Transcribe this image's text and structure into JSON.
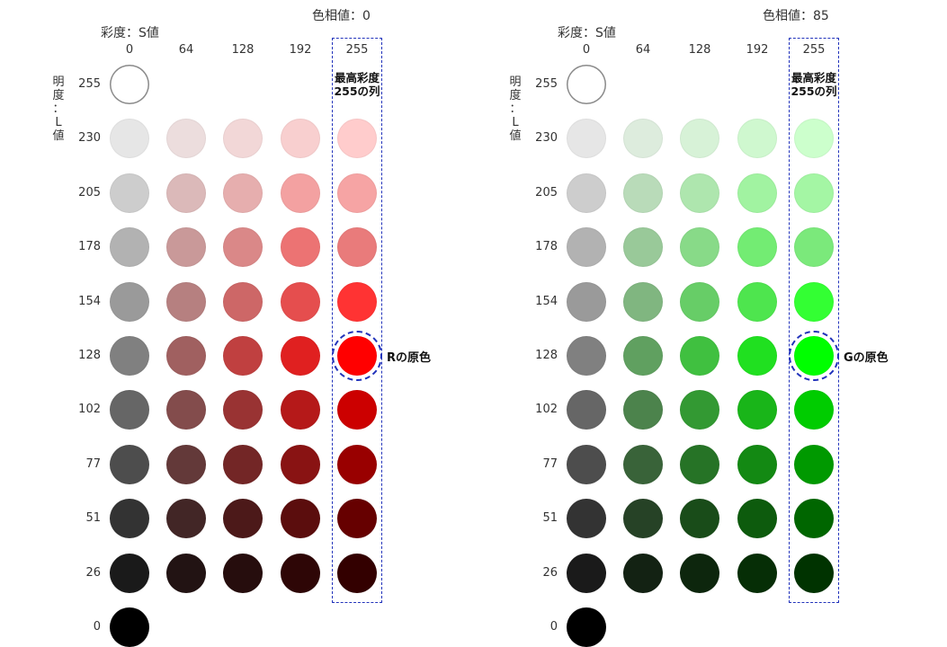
{
  "panels": [
    {
      "hue_label": "色相値：0",
      "saturation_label": "彩度：S値",
      "lightness_label": [
        "明",
        "度",
        "：",
        "L",
        "値"
      ],
      "columns": [
        "0",
        "64",
        "128",
        "192",
        "255"
      ],
      "rows": [
        "255",
        "230",
        "205",
        "178",
        "154",
        "128",
        "102",
        "77",
        "51",
        "26",
        "0"
      ],
      "max_column_label": [
        "最高彩度",
        "255の列"
      ],
      "primary_label": "Rの原色",
      "primary_row": "128",
      "colors": [
        [
          "#ffffff"
        ],
        [
          "#e6e6e6",
          "#ecdddd",
          "#f2d7d7",
          "#f8cfcf",
          "#ffcccc"
        ],
        [
          "#cdcdcd",
          "#dbb9b9",
          "#e6aeae",
          "#f3a1a1",
          "#f6a4a4"
        ],
        [
          "#b2b2b2",
          "#c99999",
          "#da8888",
          "#ec7373",
          "#e97b7b"
        ],
        [
          "#9a9a9a",
          "#b68080",
          "#cd6767",
          "#e54e4e",
          "#ff3333"
        ],
        [
          "#808080",
          "#a06060",
          "#c04040",
          "#e02020",
          "#ff0000"
        ],
        [
          "#666666",
          "#834c4c",
          "#993333",
          "#b51919",
          "#cc0000"
        ],
        [
          "#4d4d4d",
          "#633939",
          "#732626",
          "#891313",
          "#990000"
        ],
        [
          "#333333",
          "#422626",
          "#4c1919",
          "#5b0d0d",
          "#660000"
        ],
        [
          "#1a1a1a",
          "#221313",
          "#260d0d",
          "#2e0606",
          "#330000"
        ],
        [
          "#000000"
        ]
      ]
    },
    {
      "hue_label": "色相値：85",
      "saturation_label": "彩度：S値",
      "lightness_label": [
        "明",
        "度",
        "：",
        "L",
        "値"
      ],
      "columns": [
        "0",
        "64",
        "128",
        "192",
        "255"
      ],
      "rows": [
        "255",
        "230",
        "205",
        "178",
        "154",
        "128",
        "102",
        "77",
        "51",
        "26",
        "0"
      ],
      "max_column_label": [
        "最高彩度",
        "255の列"
      ],
      "primary_label": "Gの原色",
      "primary_row": "128",
      "colors": [
        [
          "#ffffff"
        ],
        [
          "#e6e6e6",
          "#ddecdd",
          "#d7f2d7",
          "#cff8cf",
          "#ccffcc"
        ],
        [
          "#cdcdcd",
          "#b9dbb9",
          "#aee6ae",
          "#a1f3a1",
          "#a4f6a4"
        ],
        [
          "#b2b2b2",
          "#99c999",
          "#88da88",
          "#73ec73",
          "#7be97b"
        ],
        [
          "#9a9a9a",
          "#80b680",
          "#67cd67",
          "#4ee54e",
          "#33ff33"
        ],
        [
          "#808080",
          "#60a060",
          "#40c040",
          "#20e020",
          "#00ff00"
        ],
        [
          "#666666",
          "#4c834c",
          "#339933",
          "#19b519",
          "#00cc00"
        ],
        [
          "#4d4d4d",
          "#396339",
          "#267326",
          "#138913",
          "#009900"
        ],
        [
          "#333333",
          "#264226",
          "#194c19",
          "#0d5b0d",
          "#006600"
        ],
        [
          "#1a1a1a",
          "#132213",
          "#0d260d",
          "#062e06",
          "#003300"
        ],
        [
          "#000000"
        ]
      ]
    }
  ]
}
